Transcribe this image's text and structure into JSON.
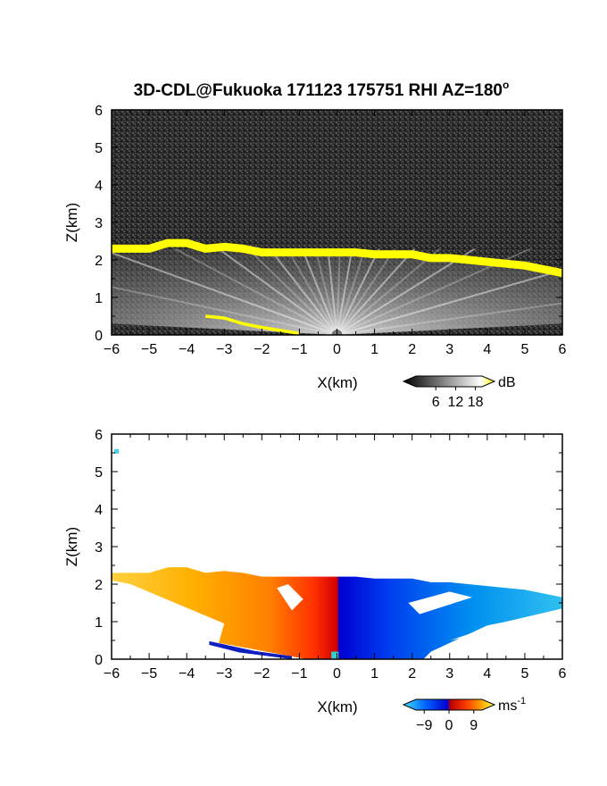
{
  "title": "3D-CDL@Fukuoka 171123 175751 RHI AZ=180",
  "title_degree_mark": "o",
  "chart_data": [
    {
      "type": "heatmap",
      "name": "backscatter-intensity",
      "xlabel": "X(km)",
      "ylabel": "Z(km)",
      "xlim": [
        -6,
        6
      ],
      "ylim": [
        0,
        6
      ],
      "xticks": [
        "-6",
        "-5",
        "-4",
        "-3",
        "-2",
        "-1",
        "0",
        "1",
        "2",
        "3",
        "4",
        "5",
        "6"
      ],
      "yticks": [
        "0",
        "1",
        "2",
        "3",
        "4",
        "5",
        "6"
      ],
      "colorbar": {
        "unit": "dB",
        "ticks": [
          "6",
          "12",
          "18"
        ],
        "tick_values": [
          6,
          12,
          18
        ],
        "range": [
          0,
          20
        ],
        "colors": [
          "#000000",
          "#ffffff",
          "#ffff00"
        ]
      },
      "cloud_top_layer": {
        "color": "#ffff00",
        "x": [
          -6,
          -5,
          -4.5,
          -4,
          -3.5,
          -3,
          -2.5,
          -2,
          -1.5,
          -1,
          -0.5,
          0,
          0.5,
          1,
          1.5,
          2,
          2.5,
          3,
          3.5,
          4,
          4.5,
          5,
          5.5,
          6
        ],
        "z": [
          2.3,
          2.3,
          2.45,
          2.45,
          2.3,
          2.35,
          2.3,
          2.2,
          2.2,
          2.2,
          2.2,
          2.2,
          2.2,
          2.15,
          2.15,
          2.15,
          2.05,
          2.05,
          2.0,
          1.95,
          1.9,
          1.85,
          1.75,
          1.65
        ]
      },
      "surface_echo": {
        "color": "#ffff00",
        "x": [
          -3.5,
          -3.0,
          -2.5,
          -2.0,
          -1.5,
          -1.0
        ],
        "z": [
          0.5,
          0.45,
          0.3,
          0.2,
          0.12,
          0.04
        ]
      }
    },
    {
      "type": "heatmap",
      "name": "doppler-velocity",
      "xlabel": "X(km)",
      "ylabel": "Z(km)",
      "xlim": [
        -6,
        6
      ],
      "ylim": [
        0,
        6
      ],
      "xticks": [
        "-6",
        "-5",
        "-4",
        "-3",
        "-2",
        "-1",
        "0",
        "1",
        "2",
        "3",
        "4",
        "5",
        "6"
      ],
      "yticks": [
        "0",
        "1",
        "2",
        "3",
        "4",
        "5",
        "6"
      ],
      "colorbar": {
        "unit": "ms",
        "unit_exponent": "-1",
        "ticks": [
          "-9",
          "0",
          "9"
        ],
        "tick_values": [
          -9,
          0,
          9
        ],
        "range": [
          -12,
          12
        ],
        "colors": [
          "#40e0ff",
          "#0060ff",
          "#0000d0",
          "#c00000",
          "#ff4000",
          "#ffa000",
          "#ffff40"
        ]
      }
    }
  ]
}
